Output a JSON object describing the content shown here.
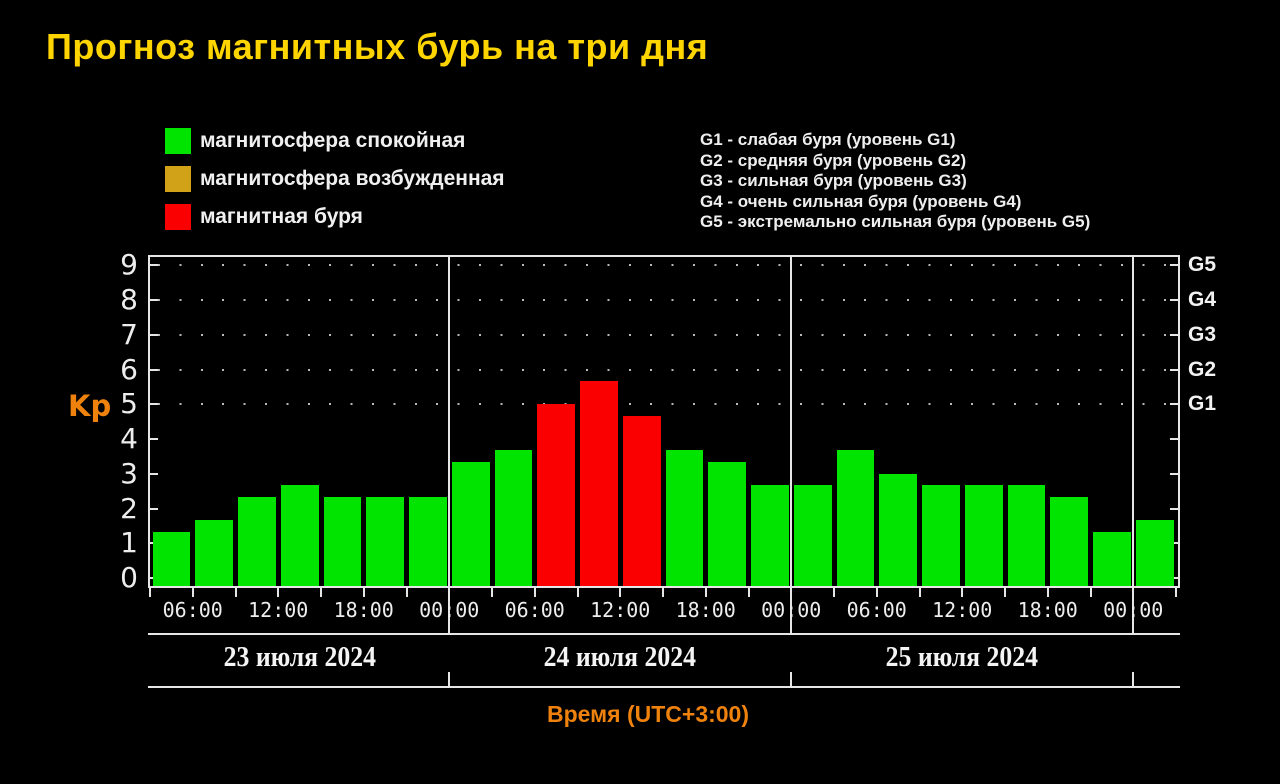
{
  "title": "Прогноз магнитных бурь на три дня",
  "legend": {
    "items": [
      {
        "status": "quiet",
        "label": "магнитосфера спокойная",
        "color": "#00e400"
      },
      {
        "status": "excited",
        "label": "магнитосфера возбужденная",
        "color": "#d1a117"
      },
      {
        "status": "storm",
        "label": "магнитная буря",
        "color": "#fb0000"
      }
    ]
  },
  "storm_levels_legend": {
    "lines": [
      "G1 - слабая буря (уровень G1)",
      "G2 - средняя буря (уровень G2)",
      "G3 - сильная буря (уровень G3)",
      "G4 - очень сильная буря (уровень G4)",
      "G5 - экстремально сильная буря (уровень G5)"
    ]
  },
  "chart_data": {
    "type": "bar",
    "ylabel": "Kp",
    "xlabel": "Время (UTC+3:00)",
    "ylim": [
      0,
      9.3
    ],
    "yticks": [
      0,
      1,
      2,
      3,
      4,
      5,
      6,
      7,
      8,
      9
    ],
    "grid": "dotted horizontal lines at Kp 5-9",
    "legend_position": "top",
    "bar_interval_hours": 3,
    "right_axis": [
      {
        "kp": 5,
        "label": "G1"
      },
      {
        "kp": 6,
        "label": "G2"
      },
      {
        "kp": 7,
        "label": "G3"
      },
      {
        "kp": 8,
        "label": "G4"
      },
      {
        "kp": 9,
        "label": "G5"
      }
    ],
    "x_time_labels": [
      "06:00",
      "12:00",
      "18:00",
      "00:00",
      "06:00",
      "12:00",
      "18:00",
      "00:00",
      "06:00",
      "12:00",
      "18:00",
      "00:00"
    ],
    "days": [
      {
        "date": "23 июля 2024",
        "values": [
          1.33,
          1.67,
          2.33,
          2.67,
          2.33,
          2.33,
          2.33
        ],
        "statuses": [
          "quiet",
          "quiet",
          "quiet",
          "quiet",
          "quiet",
          "quiet",
          "quiet"
        ]
      },
      {
        "date": "24 июля 2024",
        "values": [
          3.33,
          3.67,
          5.0,
          5.67,
          4.67,
          3.67,
          3.33,
          2.67
        ],
        "statuses": [
          "quiet",
          "quiet",
          "storm",
          "storm",
          "storm",
          "quiet",
          "quiet",
          "quiet"
        ]
      },
      {
        "date": "25 июля 2024",
        "values": [
          2.67,
          3.67,
          3.0,
          2.67,
          2.67,
          2.67,
          2.33,
          1.33
        ],
        "statuses": [
          "quiet",
          "quiet",
          "quiet",
          "quiet",
          "quiet",
          "quiet",
          "quiet",
          "quiet"
        ]
      },
      {
        "date": "",
        "values": [
          1.67
        ],
        "statuses": [
          "quiet"
        ]
      }
    ]
  }
}
